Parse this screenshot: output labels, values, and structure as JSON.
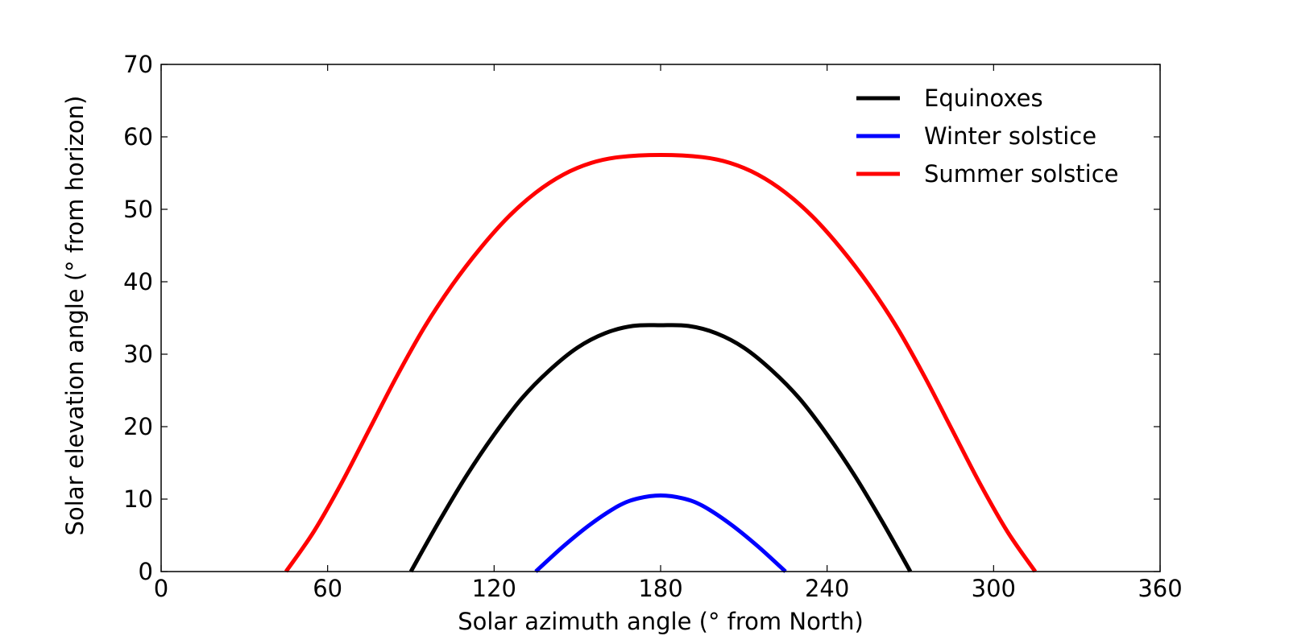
{
  "chart_data": {
    "type": "line",
    "title": "",
    "xlabel": "Solar azimuth angle (° from North)",
    "ylabel": "Solar elevation angle (° from horizon)",
    "xlim": [
      0,
      360
    ],
    "ylim": [
      0,
      70
    ],
    "xticks": [
      "0",
      "60",
      "120",
      "180",
      "240",
      "300",
      "360"
    ],
    "yticks": [
      "0",
      "10",
      "20",
      "30",
      "40",
      "50",
      "60",
      "70"
    ],
    "grid": false,
    "legend_position": "top-right",
    "series": [
      {
        "name": "Equinoxes",
        "color": "#000000",
        "x": [
          90,
          100,
          110,
          120,
          130,
          140,
          150,
          160,
          170,
          180,
          190,
          200,
          210,
          220,
          230,
          240,
          250,
          260,
          270
        ],
        "y": [
          0,
          6.8,
          13.2,
          18.9,
          23.9,
          27.8,
          30.9,
          32.9,
          33.9,
          34.0,
          33.9,
          32.9,
          30.9,
          27.8,
          23.9,
          18.9,
          13.2,
          6.8,
          0
        ]
      },
      {
        "name": "Winter solstice",
        "color": "#0000ff",
        "x": [
          135,
          145,
          155,
          165,
          172,
          180,
          188,
          195,
          205,
          215,
          225
        ],
        "y": [
          0,
          3.5,
          6.6,
          9.1,
          10.1,
          10.5,
          10.1,
          9.1,
          6.6,
          3.5,
          0
        ]
      },
      {
        "name": "Summer solstice",
        "color": "#ff0000",
        "x": [
          45,
          55,
          65,
          75,
          85,
          95,
          105,
          115,
          125,
          135,
          145,
          155,
          165,
          180,
          195,
          205,
          215,
          225,
          235,
          245,
          255,
          265,
          275,
          285,
          295,
          305,
          315
        ],
        "y": [
          0,
          5.5,
          12.2,
          19.6,
          27.0,
          33.8,
          39.6,
          44.6,
          48.9,
          52.3,
          54.8,
          56.4,
          57.2,
          57.5,
          57.2,
          56.4,
          54.8,
          52.3,
          48.9,
          44.6,
          39.6,
          33.8,
          27.0,
          19.6,
          12.2,
          5.5,
          0
        ]
      }
    ]
  }
}
